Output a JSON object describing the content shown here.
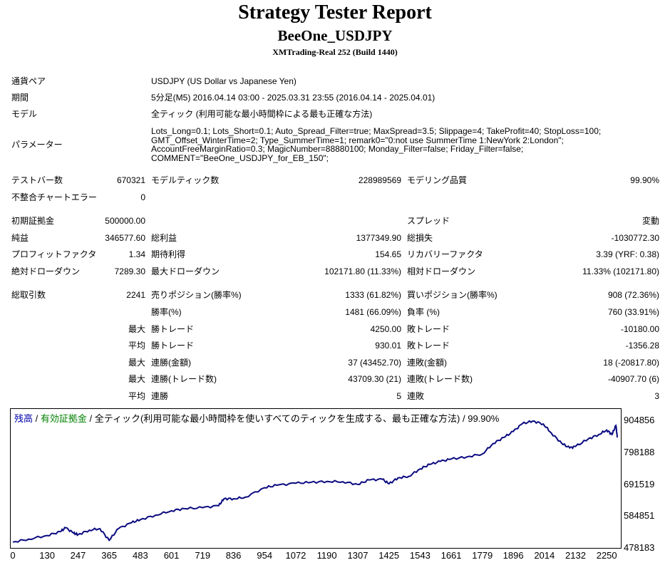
{
  "header": {
    "title": "Strategy Tester Report",
    "ea_name": "BeeOne_USDJPY",
    "server": "XMTrading-Real 252 (Build 1440)"
  },
  "info": {
    "symbol_label": "通貨ペア",
    "symbol_value": "USDJPY (US Dollar vs Japanese Yen)",
    "period_label": "期間",
    "period_value": "5分足(M5) 2016.04.14 03:00 - 2025.03.31 23:55 (2016.04.14 - 2025.04.01)",
    "model_label": "モデル",
    "model_value": "全ティック (利用可能な最小時間枠による最も正確な方法)",
    "params_label": "パラメーター",
    "params_lines": [
      "Lots_Long=0.1; Lots_Short=0.1; Auto_Spread_Filter=true; MaxSpread=3.5; Slippage=4; TakeProfit=40; StopLoss=100;",
      "GMT_Offset_WinterTime=2; Type_SummerTime=1; remark0=\"0:not use SummerTime 1:NewYork 2:London\";",
      "AccountFreeMarginRatio=0.3; MagicNumber=88880100; Monday_Filter=false; Friday_Filter=false;",
      "COMMENT=\"BeeOne_USDJPY_for_EB_150\";"
    ]
  },
  "bars": {
    "bars_label": "テストバー数",
    "bars_value": "670321",
    "ticks_label": "モデルティック数",
    "ticks_value": "228989569",
    "quality_label": "モデリング品質",
    "quality_value": "99.90%",
    "errors_label": "不整合チャートエラー",
    "errors_value": "0"
  },
  "results": {
    "deposit_label": "初期証拠金",
    "deposit_value": "500000.00",
    "spread_label": "スプレッド",
    "spread_value": "変動",
    "net_label": "純益",
    "net_value": "346577.60",
    "gross_profit_label": "総利益",
    "gross_profit_value": "1377349.90",
    "gross_loss_label": "総損失",
    "gross_loss_value": "-1030772.30",
    "pf_label": "プロフィットファクタ",
    "pf_value": "1.34",
    "payoff_label": "期待利得",
    "payoff_value": "154.65",
    "rf_label": "リカバリーファクタ",
    "rf_value": "3.39 (YRF: 0.38)",
    "abs_dd_label": "絶対ドローダウン",
    "abs_dd_value": "7289.30",
    "max_dd_label": "最大ドローダウン",
    "max_dd_value": "102171.80 (11.33%)",
    "rel_dd_label": "相対ドローダウン",
    "rel_dd_value": "11.33% (102171.80)",
    "trades_label": "総取引数",
    "trades_value": "2241",
    "short_label": "売りポジション(勝率%)",
    "short_value": "1333 (61.82%)",
    "long_label": "買いポジション(勝率%)",
    "long_value": "908 (72.36%)",
    "winrate_label": "勝率(%)",
    "winrate_value": "1481 (66.09%)",
    "lossrate_label": "負率 (%)",
    "lossrate_value": "760 (33.91%)",
    "largest_label": "最大",
    "largest_win_label": "勝トレード",
    "largest_win_value": "4250.00",
    "largest_loss_label": "敗トレード",
    "largest_loss_value": "-10180.00",
    "average_label": "平均",
    "avg_win_label": "勝トレード",
    "avg_win_value": "930.01",
    "avg_loss_label": "敗トレード",
    "avg_loss_value": "-1356.28",
    "max1_label": "最大",
    "cons_wins_amt_label": "連勝(金額)",
    "cons_wins_amt_value": "37 (43452.70)",
    "cons_loss_amt_label": "連敗(金額)",
    "cons_loss_amt_value": "18 (-20817.80)",
    "max2_label": "最大",
    "cons_wins_trd_label": "連勝(トレード数)",
    "cons_wins_trd_value": "43709.30 (21)",
    "cons_loss_trd_label": "連敗(トレード数)",
    "cons_loss_trd_value": "-40907.70 (6)",
    "avg2_label": "平均",
    "avg_cons_win_label": "連勝",
    "avg_cons_win_value": "5",
    "avg_cons_loss_label": "連敗",
    "avg_cons_loss_value": "3"
  },
  "chart_legend": {
    "balance": "残高",
    "sep1": " / ",
    "equity": "有効証拠金",
    "sep2": " / ",
    "model": "全ティック(利用可能な最小時間枠を使いすべてのティックを生成する、最も正確な方法) / 99.90%"
  },
  "colors": {
    "balance": "#0000aa",
    "equity": "#008000",
    "line": "#0a0a80"
  },
  "chart_data": {
    "type": "line",
    "x_ticks": [
      "0",
      "130",
      "247",
      "365",
      "483",
      "601",
      "719",
      "836",
      "954",
      "1072",
      "1190",
      "1307",
      "1425",
      "1543",
      "1661",
      "1779",
      "1896",
      "2014",
      "2132",
      "2250"
    ],
    "y_ticks": [
      "904856",
      "798188",
      "691519",
      "584851",
      "478183"
    ],
    "ylim": [
      478183,
      904856
    ],
    "xlim": [
      0,
      2290
    ],
    "series": [
      {
        "name": "残高",
        "x": [
          0,
          60,
          130,
          180,
          200,
          230,
          247,
          290,
          330,
          365,
          400,
          450,
          483,
          540,
          601,
          650,
          719,
          780,
          800,
          836,
          880,
          954,
          1000,
          1072,
          1130,
          1190,
          1250,
          1307,
          1350,
          1400,
          1425,
          1460,
          1500,
          1543,
          1580,
          1620,
          1661,
          1720,
          1779,
          1820,
          1860,
          1896,
          1930,
          1970,
          2010,
          2040,
          2080,
          2110,
          2132,
          2180,
          2220,
          2250,
          2270,
          2285,
          2290
        ],
        "values": [
          500000,
          510000,
          522000,
          535000,
          548000,
          530000,
          525000,
          540000,
          545000,
          506000,
          545000,
          565000,
          575000,
          590000,
          605000,
          612000,
          615000,
          622000,
          645000,
          645000,
          650000,
          682000,
          690000,
          697000,
          700000,
          703000,
          702000,
          693000,
          708000,
          710000,
          695000,
          715000,
          720000,
          745000,
          760000,
          770000,
          778000,
          785000,
          795000,
          830000,
          850000,
          870000,
          896000,
          905000,
          895000,
          865000,
          830000,
          815000,
          820000,
          845000,
          860000,
          875000,
          860000,
          890000,
          850000
        ]
      }
    ]
  }
}
